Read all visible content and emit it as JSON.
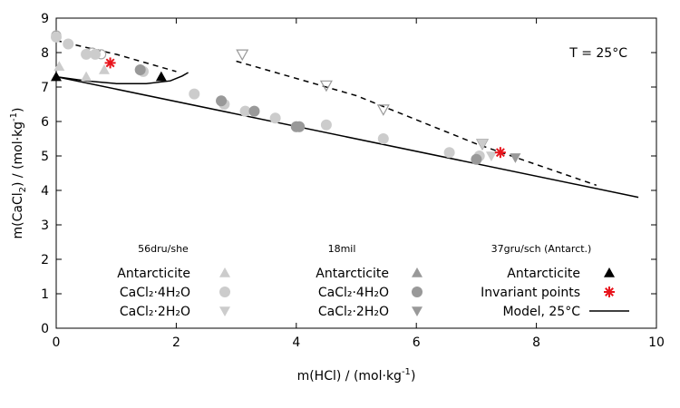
{
  "chart_data": {
    "type": "scatter",
    "title": "",
    "annotation": "T = 25°C",
    "xlabel_main": "m(HCl) / (mol·kg",
    "xlabel_sup": "-1",
    "xlabel_end": ")",
    "ylabel_pre": "m(CaCl",
    "ylabel_sub": "2",
    "ylabel_mid": ") / (mol·kg",
    "ylabel_sup": "-1",
    "ylabel_end": ")",
    "xlim": [
      0,
      10
    ],
    "ylim": [
      0,
      9
    ],
    "x_ticks": [
      0,
      2,
      4,
      6,
      8,
      10
    ],
    "y_ticks": [
      0,
      1,
      2,
      3,
      4,
      5,
      6,
      7,
      8,
      9
    ],
    "grid": false,
    "legend_groups": [
      {
        "header": "56dru/she",
        "entries": [
          "Antarcticite",
          "CaCl₂·4H₂O",
          "CaCl₂·2H₂O"
        ]
      },
      {
        "header": "18mil",
        "entries": [
          "Antarcticite",
          "CaCl₂·4H₂O",
          "CaCl₂·2H₂O"
        ]
      },
      {
        "header": "37gru/sch (Antarct.)",
        "entries": [
          "Antarcticite",
          "Invariant points",
          "Model, 25°C"
        ]
      }
    ],
    "series": [
      {
        "legend_group": 0,
        "marker": "triangle-up-light",
        "x": [
          0.05,
          0.5,
          0.8
        ],
        "y": [
          7.6,
          7.3,
          7.5
        ]
      },
      {
        "legend_group": 0,
        "marker": "circle-light",
        "x": [
          0.0,
          0.2,
          0.5,
          0.65,
          1.45,
          2.3,
          2.8,
          3.15,
          3.65,
          4.0,
          4.05,
          4.5,
          5.45,
          6.55,
          7.05
        ],
        "y": [
          8.45,
          8.25,
          7.95,
          7.95,
          7.45,
          6.8,
          6.5,
          6.3,
          6.1,
          5.85,
          5.85,
          5.9,
          5.5,
          5.1,
          5.0
        ]
      },
      {
        "legend_group": 0,
        "marker": "triangle-down-light",
        "x": [
          7.1,
          7.25
        ],
        "y": [
          5.35,
          5.0
        ]
      },
      {
        "legend_group": 1,
        "marker": "triangle-up-mid",
        "x": [],
        "y": []
      },
      {
        "legend_group": 1,
        "marker": "circle-mid",
        "x": [
          1.4,
          2.75,
          3.3,
          4.0,
          4.05,
          7.0
        ],
        "y": [
          7.5,
          6.6,
          6.3,
          5.85,
          5.85,
          4.9
        ]
      },
      {
        "legend_group": 1,
        "marker": "triangle-down-mid",
        "x": [
          7.65
        ],
        "y": [
          4.95
        ]
      },
      {
        "legend_group": 2,
        "marker": "triangle-up-black",
        "x": [
          0.0,
          1.75
        ],
        "y": [
          7.3,
          7.3
        ]
      },
      {
        "legend_group": 2,
        "marker": "star-red",
        "x": [
          0.9,
          7.4
        ],
        "y": [
          7.7,
          5.1
        ]
      }
    ],
    "open_markers": [
      {
        "marker": "circle-open",
        "x": [
          0.0,
          0.2,
          0.6,
          0.75
        ],
        "y": [
          8.5,
          8.25,
          8.0,
          7.95
        ]
      },
      {
        "marker": "triangle-down-open",
        "x": [
          3.1,
          4.5,
          5.45,
          7.1
        ],
        "y": [
          7.95,
          7.05,
          6.35,
          5.35
        ]
      }
    ],
    "model_lines": [
      {
        "style": "solid",
        "x": [
          0.0,
          9.7
        ],
        "y": [
          7.3,
          3.8
        ]
      },
      {
        "style": "solid-curve",
        "x": [
          0.0,
          0.5,
          1.0,
          1.5,
          1.9,
          2.1,
          2.2
        ],
        "y": [
          7.3,
          7.18,
          7.1,
          7.1,
          7.18,
          7.32,
          7.42
        ]
      },
      {
        "style": "dashed",
        "x": [
          0.0,
          1.0,
          2.0
        ],
        "y": [
          8.35,
          7.95,
          7.45
        ]
      },
      {
        "style": "dashed",
        "x": [
          3.0,
          5.0,
          7.0,
          9.0
        ],
        "y": [
          7.75,
          6.75,
          5.35,
          4.15
        ]
      }
    ]
  }
}
